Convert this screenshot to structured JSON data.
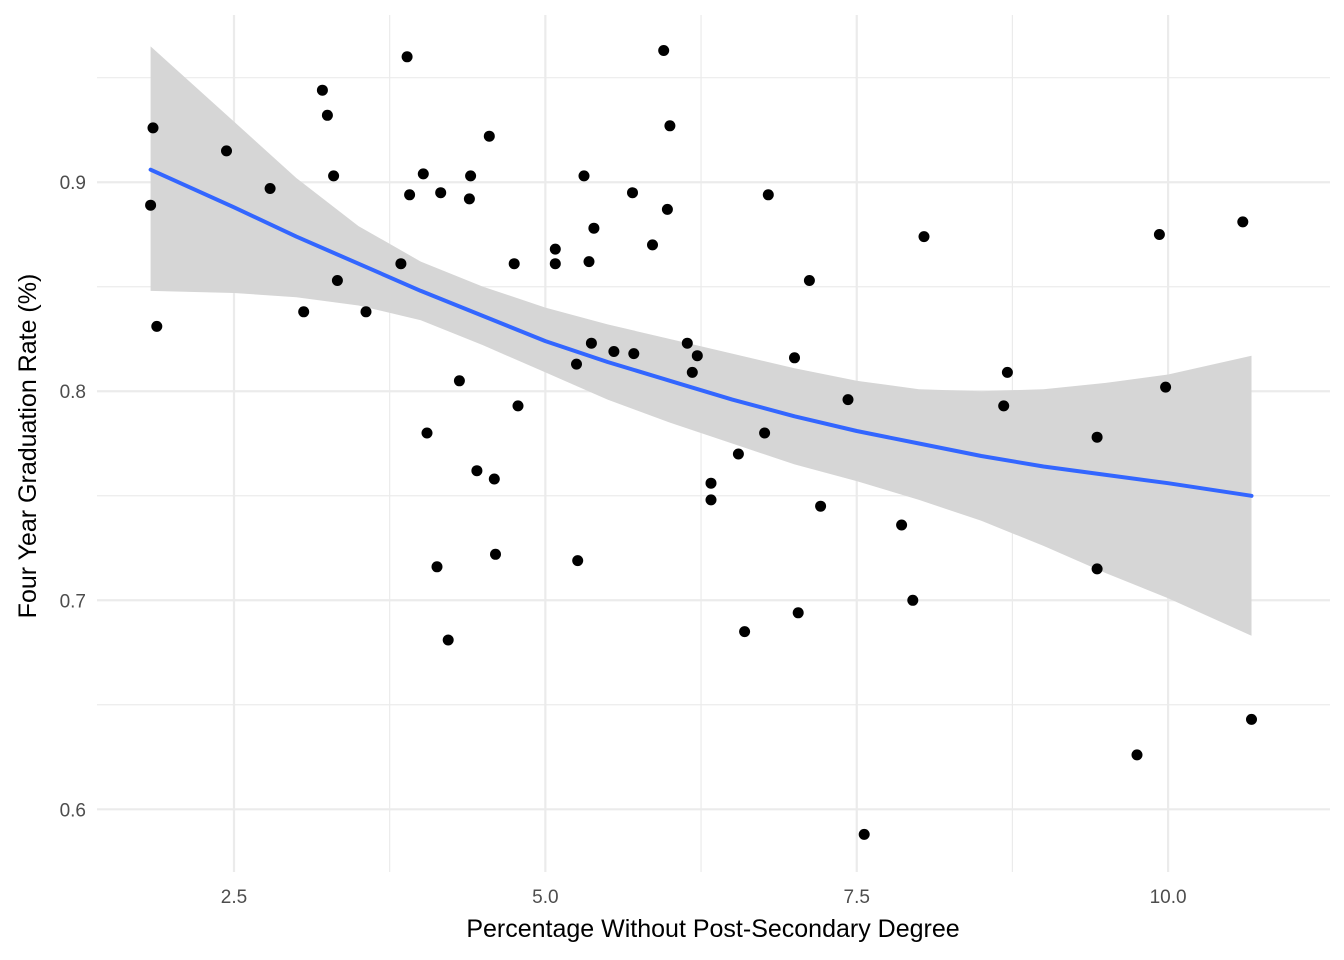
{
  "chart_data": {
    "type": "scatter",
    "title": "",
    "xlabel": "Percentage Without Post-Secondary Degree",
    "ylabel": "Four Year Graduation Rate (%)",
    "xlim": [
      1.4,
      11.3
    ],
    "ylim": [
      0.57,
      0.98
    ],
    "x_ticks": [
      2.5,
      5.0,
      7.5,
      10.0
    ],
    "x_tick_labels": [
      "2.5",
      "5.0",
      "7.5",
      "10.0"
    ],
    "y_ticks": [
      0.6,
      0.7,
      0.8,
      0.9
    ],
    "y_tick_labels": [
      "0.6",
      "0.7",
      "0.8",
      "0.9"
    ],
    "x_minor_ticks": [
      3.75,
      6.25,
      8.75
    ],
    "y_minor_ticks": [
      0.65,
      0.75,
      0.85,
      0.95
    ],
    "grid": true,
    "legend": "none",
    "colors": {
      "points": "#000000",
      "smooth": "#3366FF",
      "ribbon": "#d6d6d6",
      "grid": "#ebebeb"
    },
    "points": [
      [
        1.85,
        0.926
      ],
      [
        1.83,
        0.889
      ],
      [
        1.88,
        0.831
      ],
      [
        2.44,
        0.915
      ],
      [
        2.79,
        0.897
      ],
      [
        3.06,
        0.838
      ],
      [
        3.21,
        0.944
      ],
      [
        3.25,
        0.932
      ],
      [
        3.3,
        0.903
      ],
      [
        3.33,
        0.853
      ],
      [
        3.56,
        0.838
      ],
      [
        3.84,
        0.861
      ],
      [
        3.89,
        0.96
      ],
      [
        3.91,
        0.894
      ],
      [
        4.02,
        0.904
      ],
      [
        4.05,
        0.78
      ],
      [
        4.13,
        0.716
      ],
      [
        4.16,
        0.895
      ],
      [
        4.22,
        0.681
      ],
      [
        4.31,
        0.805
      ],
      [
        4.39,
        0.892
      ],
      [
        4.4,
        0.903
      ],
      [
        4.45,
        0.762
      ],
      [
        4.55,
        0.922
      ],
      [
        4.59,
        0.758
      ],
      [
        4.6,
        0.722
      ],
      [
        4.75,
        0.861
      ],
      [
        4.78,
        0.793
      ],
      [
        5.08,
        0.868
      ],
      [
        5.08,
        0.861
      ],
      [
        5.25,
        0.813
      ],
      [
        5.26,
        0.719
      ],
      [
        5.31,
        0.903
      ],
      [
        5.35,
        0.862
      ],
      [
        5.37,
        0.823
      ],
      [
        5.39,
        0.878
      ],
      [
        5.55,
        0.819
      ],
      [
        5.7,
        0.895
      ],
      [
        5.71,
        0.818
      ],
      [
        5.86,
        0.87
      ],
      [
        5.95,
        0.963
      ],
      [
        5.98,
        0.887
      ],
      [
        6.0,
        0.927
      ],
      [
        6.14,
        0.823
      ],
      [
        6.18,
        0.809
      ],
      [
        6.22,
        0.817
      ],
      [
        6.33,
        0.756
      ],
      [
        6.33,
        0.748
      ],
      [
        6.55,
        0.77
      ],
      [
        6.6,
        0.685
      ],
      [
        6.76,
        0.78
      ],
      [
        6.79,
        0.894
      ],
      [
        7.0,
        0.816
      ],
      [
        7.03,
        0.694
      ],
      [
        7.12,
        0.853
      ],
      [
        7.21,
        0.745
      ],
      [
        7.43,
        0.796
      ],
      [
        7.56,
        0.588
      ],
      [
        7.86,
        0.736
      ],
      [
        7.95,
        0.7
      ],
      [
        8.04,
        0.874
      ],
      [
        8.68,
        0.793
      ],
      [
        8.71,
        0.809
      ],
      [
        9.43,
        0.778
      ],
      [
        9.43,
        0.715
      ],
      [
        9.75,
        0.626
      ],
      [
        9.93,
        0.875
      ],
      [
        9.98,
        0.802
      ],
      [
        10.6,
        0.881
      ],
      [
        10.67,
        0.643
      ]
    ],
    "smooth_line": {
      "x": [
        1.83,
        2.5,
        3.0,
        3.5,
        4.0,
        4.5,
        5.0,
        5.5,
        6.0,
        6.5,
        7.0,
        7.5,
        8.0,
        8.5,
        9.0,
        9.5,
        10.0,
        10.67
      ],
      "y": [
        0.906,
        0.888,
        0.874,
        0.861,
        0.848,
        0.836,
        0.824,
        0.814,
        0.805,
        0.796,
        0.788,
        0.781,
        0.775,
        0.769,
        0.764,
        0.76,
        0.756,
        0.75
      ]
    },
    "ribbon_upper": [
      0.965,
      0.929,
      0.902,
      0.879,
      0.862,
      0.85,
      0.84,
      0.832,
      0.825,
      0.818,
      0.811,
      0.805,
      0.801,
      0.8,
      0.801,
      0.804,
      0.808,
      0.817
    ],
    "ribbon_lower": [
      0.848,
      0.847,
      0.845,
      0.841,
      0.834,
      0.822,
      0.809,
      0.796,
      0.785,
      0.775,
      0.765,
      0.757,
      0.748,
      0.738,
      0.726,
      0.713,
      0.701,
      0.683
    ]
  }
}
